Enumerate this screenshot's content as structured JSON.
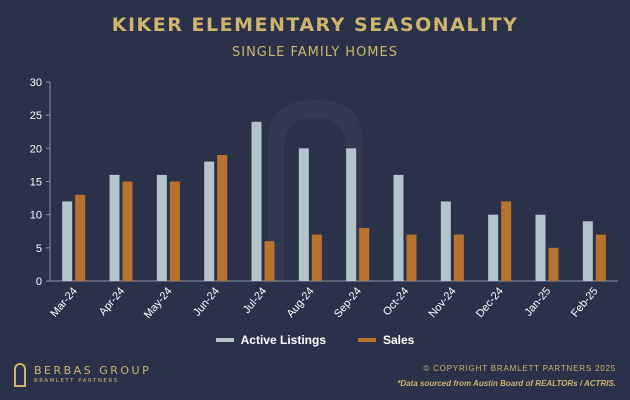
{
  "header": {
    "title": "KIKER ELEMENTARY SEASONALITY",
    "subtitle": "SINGLE FAMILY HOMES"
  },
  "chart_data": {
    "type": "bar",
    "categories": [
      "Mar-24",
      "Apr-24",
      "May-24",
      "Jun-24",
      "Jul-24",
      "Aug-24",
      "Sep-24",
      "Oct-24",
      "Nov-24",
      "Dec-24",
      "Jan-25",
      "Feb-25"
    ],
    "series": [
      {
        "name": "Active Listings",
        "color": "#b3c5cb",
        "values": [
          12,
          16,
          16,
          18,
          24,
          20,
          20,
          16,
          12,
          10,
          10,
          9
        ]
      },
      {
        "name": "Sales",
        "color": "#b8732e",
        "values": [
          13,
          15,
          15,
          19,
          6,
          7,
          8,
          7,
          7,
          12,
          5,
          7
        ]
      }
    ],
    "ylim": [
      0,
      30
    ],
    "yticks": [
      0,
      5,
      10,
      15,
      20,
      25,
      30
    ],
    "grid": false,
    "legend": "bottom"
  },
  "footer": {
    "brand_name": "BERBAS GROUP",
    "brand_sub": "BRAMLETT PARTNERS",
    "copyright": "© COPYRIGHT BRAMLETT PARTNERS 2025",
    "source": "*Data sourced from Austin Board of REALTORs / ACTRIS."
  }
}
